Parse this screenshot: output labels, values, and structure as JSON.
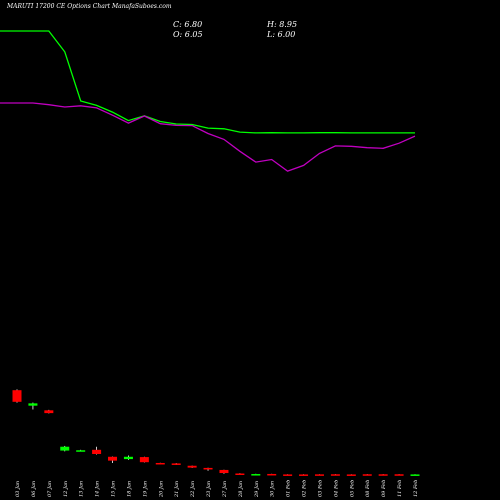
{
  "title": "MARUTI 17200 CE Options  Chart ManafaSuboes.com",
  "ohlc": {
    "close": "C: 6.80",
    "open": "O: 6.05",
    "high": "H: 8.95",
    "low": "L: 6.00"
  },
  "colors": {
    "background": "#000000",
    "up": "#00ff00",
    "down": "#ff0000",
    "ma_fast": "#00ff00",
    "ma_slow": "#c000c0",
    "text": "#ffffff"
  },
  "chart_data": {
    "type": "candlestick",
    "categories": [
      "03 Jan",
      "06 Jan",
      "07 Jan",
      "12 Jan",
      "13 Jan",
      "14 Jan",
      "15 Jan",
      "18 Jan",
      "19 Jan",
      "20 Jan",
      "21 Jan",
      "22 Jan",
      "23 Jan",
      "27 Jan",
      "28 Jan",
      "29 Jan",
      "30 Jan",
      "01 Feb",
      "02 Feb",
      "03 Feb",
      "04 Feb",
      "05 Feb",
      "08 Feb",
      "09 Feb",
      "11 Feb",
      "12 Feb"
    ],
    "candles": [
      {
        "open": 58.0,
        "high": 58.5,
        "low": 50.0,
        "close": 50.5
      },
      {
        "open": 48.0,
        "high": 50.0,
        "low": 45.5,
        "close": 49.5
      },
      {
        "open": 45.0,
        "high": 45.3,
        "low": 43.0,
        "close": 43.2
      },
      {
        "open": 19.0,
        "high": 22.0,
        "low": 18.5,
        "close": 21.5
      },
      {
        "open": 19.2,
        "high": 19.5,
        "low": 18.9,
        "close": 19.2
      },
      {
        "open": 19.5,
        "high": 21.5,
        "low": 16.5,
        "close": 16.8
      },
      {
        "open": 15.0,
        "high": 15.2,
        "low": 11.0,
        "close": 12.5
      },
      {
        "open": 13.5,
        "high": 15.8,
        "low": 13.0,
        "close": 15.0
      },
      {
        "open": 14.8,
        "high": 15.0,
        "low": 11.3,
        "close": 11.5
      },
      {
        "open": 11.0,
        "high": 11.1,
        "low": 10.2,
        "close": 10.5
      },
      {
        "open": 10.7,
        "high": 10.9,
        "low": 9.7,
        "close": 9.9
      },
      {
        "open": 9.2,
        "high": 9.3,
        "low": 7.8,
        "close": 8.0
      },
      {
        "open": 7.8,
        "high": 7.9,
        "low": 6.0,
        "close": 6.8
      },
      {
        "open": 6.5,
        "high": 6.6,
        "low": 4.0,
        "close": 4.5
      },
      {
        "open": 4.2,
        "high": 4.4,
        "low": 3.8,
        "close": 3.9
      },
      {
        "open": 3.8,
        "high": 4.0,
        "low": 3.5,
        "close": 3.85
      },
      {
        "open": 3.9,
        "high": 4.0,
        "low": 3.5,
        "close": 3.6
      },
      {
        "open": 3.6,
        "high": 3.7,
        "low": 3.5,
        "close": 3.55
      },
      {
        "open": 3.6,
        "high": 3.7,
        "low": 3.5,
        "close": 3.55
      },
      {
        "open": 3.65,
        "high": 3.7,
        "low": 3.5,
        "close": 3.55
      },
      {
        "open": 3.7,
        "high": 3.8,
        "low": 3.5,
        "close": 3.55
      },
      {
        "open": 3.6,
        "high": 3.7,
        "low": 3.5,
        "close": 3.55
      },
      {
        "open": 3.7,
        "high": 3.8,
        "low": 3.5,
        "close": 3.55
      },
      {
        "open": 3.7,
        "high": 3.8,
        "low": 3.5,
        "close": 3.55
      },
      {
        "open": 3.7,
        "high": 3.8,
        "low": 3.5,
        "close": 3.55
      },
      {
        "open": 3.5,
        "high": 3.7,
        "low": 3.4,
        "close": 3.6
      }
    ],
    "series": [
      {
        "type": "line",
        "values": [
          290.0,
          290.0,
          290.0,
          276.5,
          244.8,
          241.9,
          237.6,
          232.1,
          235.2,
          231.5,
          229.9,
          229.6,
          227.3,
          226.8,
          224.7,
          224.2,
          224.3,
          224.2,
          224.2,
          224.3,
          224.3,
          224.2,
          224.2,
          224.2,
          224.2,
          224.2
        ]
      },
      {
        "type": "line",
        "values": [
          243.5,
          243.5,
          242.4,
          240.9,
          241.7,
          240.3,
          235.6,
          230.5,
          235.1,
          230.1,
          229.0,
          228.9,
          223.8,
          220.0,
          212.3,
          205.3,
          207.0,
          199.5,
          203.2,
          210.9,
          215.8,
          215.5,
          214.6,
          214.2,
          217.5,
          222.1
        ]
      }
    ],
    "y_range": [
      0,
      310
    ],
    "grid": false,
    "legend": "none"
  }
}
